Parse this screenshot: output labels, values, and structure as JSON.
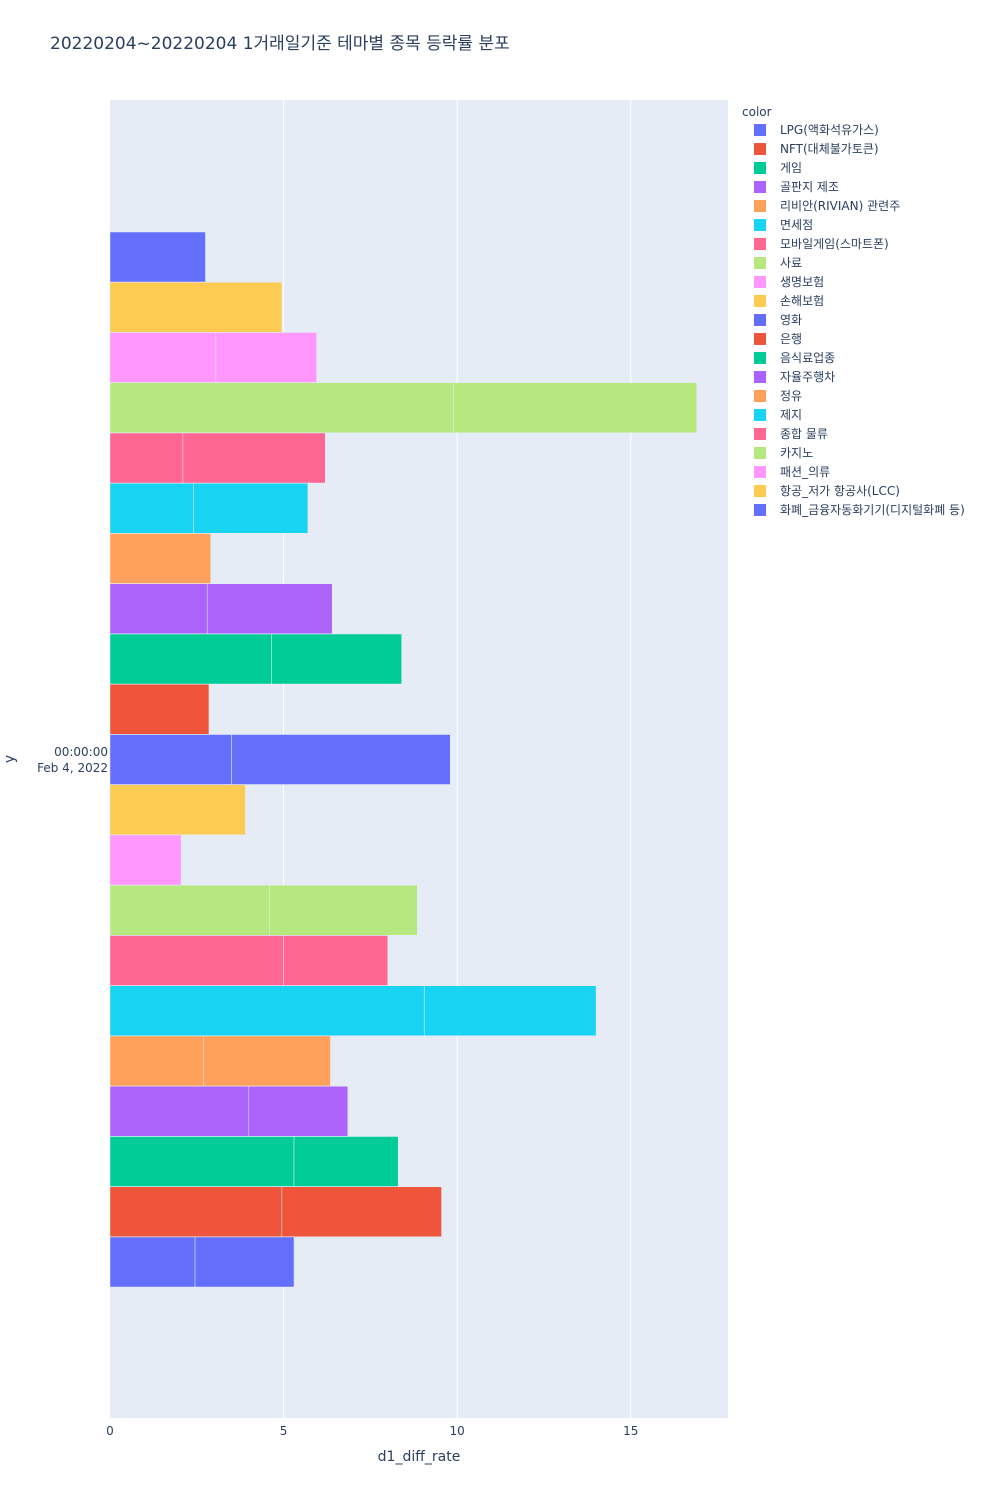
{
  "chart_data": {
    "type": "bar",
    "orientation": "horizontal",
    "barmode": "stack",
    "title": "20220204~20220204 1거래일기준 테마별 종목 등락률 분포",
    "xlabel": "d1_diff_rate",
    "ylabel": "y",
    "y_tick_line1": "00:00:00",
    "y_tick_line2": "Feb 4, 2022",
    "xlim": [
      0,
      17.8
    ],
    "xticks": [
      0,
      5,
      10,
      15
    ],
    "grid": true,
    "legend_title": "color",
    "legend_position": "right",
    "series": [
      {
        "name": "LPG(액화석유가스)",
        "color": "#636efa",
        "segments": [
          2.45,
          2.85
        ]
      },
      {
        "name": "NFT(대체불가토큰)",
        "color": "#EF553B",
        "segments": [
          4.95,
          4.6
        ]
      },
      {
        "name": "게임",
        "color": "#00cc96",
        "segments": [
          5.3,
          3.0
        ]
      },
      {
        "name": "골판지 제조",
        "color": "#ab63fa",
        "segments": [
          4.0,
          2.85
        ]
      },
      {
        "name": "리비안(RIVIAN) 관련주",
        "color": "#FFA15A",
        "segments": [
          2.7,
          3.65
        ]
      },
      {
        "name": "면세점",
        "color": "#19d3f3",
        "segments": [
          9.05,
          4.95
        ]
      },
      {
        "name": "모바일게임(스마트폰)",
        "color": "#FF6692",
        "segments": [
          5.0,
          3.0
        ]
      },
      {
        "name": "사료",
        "color": "#B6E880",
        "segments": [
          4.6,
          4.25
        ]
      },
      {
        "name": "생명보험",
        "color": "#FF97FF",
        "segments": [
          2.05
        ]
      },
      {
        "name": "손해보험",
        "color": "#FECB52",
        "segments": [
          3.9
        ]
      },
      {
        "name": "영화",
        "color": "#636efa",
        "segments": [
          3.5,
          6.3
        ]
      },
      {
        "name": "은행",
        "color": "#EF553B",
        "segments": [
          2.85
        ]
      },
      {
        "name": "음식료업종",
        "color": "#00cc96",
        "segments": [
          4.65,
          3.75
        ]
      },
      {
        "name": "자율주행차",
        "color": "#ab63fa",
        "segments": [
          2.8,
          3.6
        ]
      },
      {
        "name": "정유",
        "color": "#FFA15A",
        "segments": [
          2.9
        ]
      },
      {
        "name": "제지",
        "color": "#19d3f3",
        "segments": [
          2.4,
          3.3
        ]
      },
      {
        "name": "종합 물류",
        "color": "#FF6692",
        "segments": [
          2.1,
          4.1
        ]
      },
      {
        "name": "카지노",
        "color": "#B6E880",
        "segments": [
          9.9,
          7.0
        ]
      },
      {
        "name": "패션_의류",
        "color": "#FF97FF",
        "segments": [
          3.05,
          2.9
        ]
      },
      {
        "name": "항공_저가 항공사(LCC)",
        "color": "#FECB52",
        "segments": [
          4.95
        ]
      },
      {
        "name": "화폐_금융자동화기기(디지털화폐 등)",
        "color": "#636efa",
        "segments": [
          2.75
        ]
      }
    ]
  }
}
